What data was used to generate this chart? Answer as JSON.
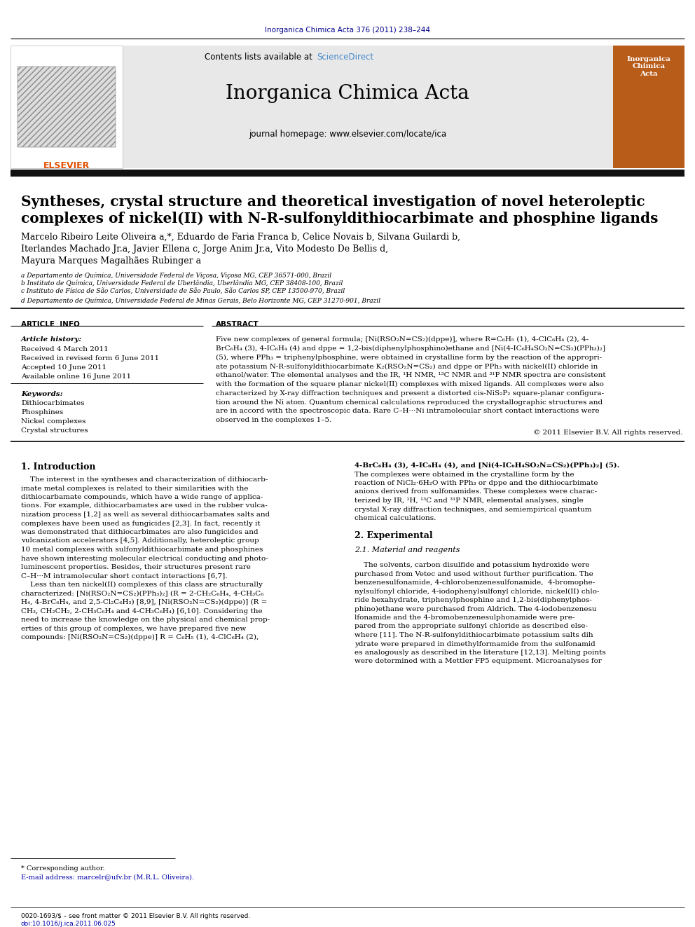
{
  "page_bg": "#ffffff",
  "top_journal_ref": "Inorganica Chimica Acta 376 (2011) 238–244",
  "top_journal_ref_color": "#00008B",
  "header_sciencedirect_color": "#4488CC",
  "journal_name": "Inorganica Chimica Acta",
  "article_title_line1": "Syntheses, crystal structure and theoretical investigation of novel heteroleptic",
  "article_title_line2": "complexes of nickel(II) with N-R-sulfonyldithiocarbimate and phosphine ligands",
  "authors_line1": "Marcelo Ribeiro Leite Oliveira a,*, Eduardo de Faria Franca b, Celice Novais b, Silvana Guilardi b,",
  "authors_line2": "Iterlandes Machado Jr.a, Javier Ellena c, Jorge Anim Jr.a, Vito Modesto De Bellis d,",
  "authors_line3": "Mayura Marques Magalhães Rubinger a",
  "affil_a": "a Departamento de Química, Universidade Federal de Viçosa, Viçosa MG, CEP 36571-000, Brazil",
  "affil_b": "b Instituto de Química, Universidade Federal de Uberlândia, Uberlândia MG, CEP 38408-100, Brazil",
  "affil_c": "c Instituto de Física de São Carlos, Universidade de São Paulo, São Carlos SP, CEP 13500-970, Brazil",
  "affil_d": "d Departamento de Química, Universidade Federal de Minas Gerais, Belo Horizonte MG, CEP 31270-901, Brazil",
  "art_info_title": "ARTICLE  INFO",
  "abstract_title": "ABSTRACT",
  "history_label": "Article history:",
  "received1": "Received 4 March 2011",
  "received2": "Received in revised form 6 June 2011",
  "accepted": "Accepted 10 June 2011",
  "available": "Available online 16 June 2011",
  "keywords_label": "Keywords:",
  "kw1": "Dithiocarbimates",
  "kw2": "Phosphines",
  "kw3": "Nickel complexes",
  "kw4": "Crystal structures",
  "abstract_lines": [
    "Five new complexes of general formula; [Ni(RSO₂N=CS₂)(dppe)], where R=C₆H₅ (1), 4-ClC₆H₄ (2), 4-",
    "BrC₆H₄ (3), 4-IC₆H₄ (4) and dppe = 1,2-bis(diphenylphosphino)ethane and [Ni(4-IC₆H₄SO₂N=CS₂)(PPh₃)₂]",
    "(5), where PPh₃ = triphenylphosphine, were obtained in crystalline form by the reaction of the appropri-",
    "ate potassium N-R-sulfonyldithiocarbimate K₂(RSO₂N=CS₂) and dppe or PPh₃ with nickel(II) chloride in",
    "ethanol/water. The elemental analyses and the IR, ¹H NMR, ¹³C NMR and ³¹P NMR spectra are consistent",
    "with the formation of the square planar nickel(II) complexes with mixed ligands. All complexes were also",
    "characterized by X-ray diffraction techniques and present a distorted cis-NiS₂P₂ square-planar configura-",
    "tion around the Ni atom. Quantum chemical calculations reproduced the crystallographic structures and",
    "are in accord with the spectroscopic data. Rare C–H···Ni intramolecular short contact interactions were",
    "observed in the complexes 1–5."
  ],
  "copyright": "© 2011 Elsevier B.V. All rights reserved.",
  "sec1_title": "1. Introduction",
  "intro_col1_lines": [
    "    The interest in the syntheses and characterization of dithiocarb-",
    "imate metal complexes is related to their similarities with the",
    "dithiocarbamate compounds, which have a wide range of applica-",
    "tions. For example, dithiocarbamates are used in the rubber vulca-",
    "nization process [1,2] as well as several dithiocarbamates salts and",
    "complexes have been used as fungicides [2,3]. In fact, recently it",
    "was demonstrated that dithiocarbimates are also fungicides and",
    "vulcanization accelerators [4,5]. Additionally, heteroleptic group",
    "10 metal complexes with sulfonyldithiocarbimate and phosphines",
    "have shown interesting molecular electrical conducting and photo-",
    "luminescent properties. Besides, their structures present rare",
    "C–H···M intramolecular short contact interactions [6,7].",
    "    Less than ten nickel(II) complexes of this class are structurally",
    "characterized: [Ni(RSO₂N=CS₂)(PPh₃)₂] (R = 2-CH₂C₆H₄, 4-CH₃C₆",
    "H₄, 4-BrC₆H₄, and 2,5-Cl₂C₆H₃) [8,9], [Ni(RSO₂N=CS₂)(dppe)] (R =",
    "CH₃, CH₂CH₂, 2-CH₃C₆H₄ and 4-CH₃C₆H₄) [6,10]. Considering the",
    "need to increase the knowledge on the physical and chemical prop-",
    "erties of this group of complexes, we have prepared five new",
    "compounds: [Ni(RSO₂N=CS₂)(dppe)] R = C₆H₅ (1), 4-ClC₆H₄ (2),"
  ],
  "intro_col2_lines": [
    "4-BrC₆H₄ (3), 4-IC₆H₄ (4), and [Ni(4-IC₆H₄SO₂N=CS₂)(PPh₃)₂] (5).",
    "The complexes were obtained in the crystalline form by the",
    "reaction of NiCl₂·6H₂O with PPh₃ or dppe and the dithiocarbimate",
    "anions derived from sulfonamides. These complexes were charac-",
    "terized by IR, ¹H, ¹³C and ³¹P NMR, elemental analyses, single",
    "crystal X-ray diffraction techniques, and semiempirical quantum",
    "chemical calculations.",
    "",
    "2. Experimental",
    "",
    "2.1. Material and reagents",
    "",
    "    The solvents, carbon disulfide and potassium hydroxide were",
    "purchased from Vetec and used without further purification. The",
    "benzenesulfonamide, 4-chlorobenzenesulfonamide,  4-bromophe-",
    "nylsulfonyl chloride, 4-iodophenylsulfonyl chloride, nickel(II) chlo-",
    "ride hexahydrate, triphenylphosphine and 1,2-bis(diphenylphos-",
    "phino)ethane were purchased from Aldrich. The 4-iodobenzenesu",
    "lfonamide and the 4-bromobenzenesulphonamide were pre-",
    "pared from the appropriate sulfonyl chloride as described else-",
    "where [11]. The N-R-sulfonyldithiocarbimate potassium salts dih",
    "ydrate were prepared in dimethylformamide from the sulfonamid",
    "es analogously as described in the literature [12,13]. Melting points",
    "were determined with a Mettler FP5 equipment. Microanalyses for"
  ],
  "footer1": "* Corresponding author.",
  "footer2": "E-mail address: marcelr@ufv.br (M.R.L. Oliveira).",
  "footer3": "0020-1693/$ – see front matter © 2011 Elsevier B.V. All rights reserved.",
  "footer4": "doi:10.1016/j.ica.2011.06.025"
}
